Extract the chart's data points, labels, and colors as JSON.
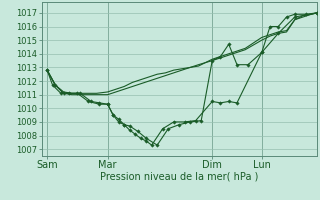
{
  "xlabel": "Pression niveau de la mer( hPa )",
  "background_color": "#c8e8dc",
  "grid_color": "#96bfb0",
  "line_color": "#1a5c28",
  "spine_color": "#5a8a78",
  "ylim": [
    1006.5,
    1017.8
  ],
  "xlim": [
    0,
    100
  ],
  "yticks": [
    1007,
    1008,
    1009,
    1010,
    1011,
    1012,
    1013,
    1014,
    1015,
    1016,
    1017
  ],
  "day_labels": [
    "Sam",
    "Mar",
    "Dim",
    "Lun"
  ],
  "day_positions": [
    2,
    24,
    62,
    80
  ],
  "s1_x": [
    2,
    5,
    8,
    11,
    14,
    17,
    20,
    24,
    27,
    30,
    33,
    36,
    39,
    42,
    45,
    48,
    51,
    54,
    57,
    62,
    65,
    68,
    71,
    74,
    80,
    83,
    86,
    89,
    92,
    95,
    98,
    100
  ],
  "s1_y": [
    1012.8,
    1011.7,
    1011.2,
    1011.1,
    1011.1,
    1011.1,
    1011.1,
    1011.2,
    1011.4,
    1011.6,
    1011.9,
    1012.1,
    1012.3,
    1012.5,
    1012.6,
    1012.8,
    1012.9,
    1013.0,
    1013.1,
    1013.6,
    1013.8,
    1014.0,
    1014.2,
    1014.4,
    1015.2,
    1015.4,
    1015.6,
    1015.7,
    1016.5,
    1016.8,
    1016.9,
    1017.0
  ],
  "s2_x": [
    2,
    5,
    8,
    11,
    14,
    17,
    20,
    24,
    27,
    30,
    33,
    36,
    39,
    42,
    45,
    48,
    51,
    54,
    57,
    62,
    65,
    68,
    71,
    74,
    80,
    83,
    86,
    89,
    92,
    95,
    98,
    100
  ],
  "s2_y": [
    1012.8,
    1011.7,
    1011.1,
    1011.0,
    1011.0,
    1011.0,
    1011.0,
    1011.0,
    1011.2,
    1011.4,
    1011.6,
    1011.8,
    1012.0,
    1012.2,
    1012.4,
    1012.6,
    1012.8,
    1013.0,
    1013.2,
    1013.5,
    1013.7,
    1013.9,
    1014.1,
    1014.3,
    1015.0,
    1015.3,
    1015.5,
    1015.6,
    1016.5,
    1016.7,
    1016.9,
    1017.0
  ],
  "s3_x": [
    2,
    4,
    7,
    10,
    13,
    17,
    21,
    24,
    26,
    28,
    30,
    32,
    35,
    38,
    42,
    46,
    50,
    54,
    58,
    62,
    65,
    68,
    71,
    75,
    80,
    83,
    86,
    89,
    92,
    96,
    100
  ],
  "s3_y": [
    1012.8,
    1011.7,
    1011.1,
    1011.1,
    1011.1,
    1010.5,
    1010.3,
    1010.3,
    1009.5,
    1009.0,
    1008.8,
    1008.7,
    1008.3,
    1007.8,
    1007.3,
    1008.5,
    1008.8,
    1009.0,
    1009.1,
    1013.5,
    1013.8,
    1014.7,
    1013.2,
    1013.2,
    1014.1,
    1016.0,
    1016.0,
    1016.7,
    1016.9,
    1016.9,
    1017.0
  ],
  "s4_x": [
    2,
    5,
    8,
    14,
    18,
    21,
    24,
    26,
    28,
    30,
    32,
    34,
    36,
    38,
    40,
    44,
    48,
    52,
    56,
    62,
    65,
    68,
    71,
    80,
    86,
    92,
    100
  ],
  "s4_y": [
    1012.8,
    1011.7,
    1011.1,
    1011.1,
    1010.5,
    1010.4,
    1010.3,
    1009.5,
    1009.2,
    1008.8,
    1008.4,
    1008.1,
    1007.8,
    1007.6,
    1007.3,
    1008.5,
    1009.0,
    1009.0,
    1009.1,
    1010.5,
    1010.4,
    1010.5,
    1010.4,
    1014.1,
    1015.5,
    1016.7,
    1017.0
  ]
}
